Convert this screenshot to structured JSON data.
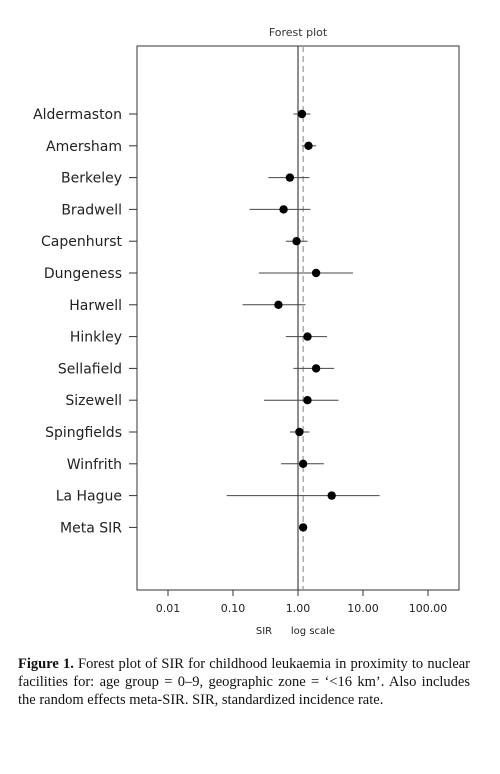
{
  "chart_data": {
    "type": "forest",
    "title": "Forest plot",
    "xlabel": "SIR",
    "xscale_label": "log scale",
    "xscale": "log",
    "xlim": [
      0.004,
      0.22
    ],
    "xticks": [
      0.01,
      0.1,
      1,
      10,
      100
    ],
    "xtick_labels": [
      "0.01",
      "0.10",
      "1.00",
      "10.00",
      "100.00"
    ],
    "reference_line": 1.0,
    "meta_line": 1.2,
    "rows": [
      {
        "label": "Aldermaston",
        "sir": 1.15,
        "lo": 0.85,
        "hi": 1.55
      },
      {
        "label": "Amersham",
        "sir": 1.45,
        "lo": 1.15,
        "hi": 1.9
      },
      {
        "label": "Berkeley",
        "sir": 0.75,
        "lo": 0.35,
        "hi": 1.5
      },
      {
        "label": "Bradwell",
        "sir": 0.6,
        "lo": 0.18,
        "hi": 1.55
      },
      {
        "label": "Capenhurst",
        "sir": 0.95,
        "lo": 0.65,
        "hi": 1.4
      },
      {
        "label": "Dungeness",
        "sir": 1.9,
        "lo": 0.25,
        "hi": 7.0
      },
      {
        "label": "Harwell",
        "sir": 0.5,
        "lo": 0.14,
        "hi": 1.3
      },
      {
        "label": "Hinkley",
        "sir": 1.4,
        "lo": 0.65,
        "hi": 2.8
      },
      {
        "label": "Sellafield",
        "sir": 1.9,
        "lo": 0.85,
        "hi": 3.6
      },
      {
        "label": "Sizewell",
        "sir": 1.4,
        "lo": 0.3,
        "hi": 4.2
      },
      {
        "label": "Spingfields",
        "sir": 1.05,
        "lo": 0.75,
        "hi": 1.5
      },
      {
        "label": "Winfrith",
        "sir": 1.2,
        "lo": 0.55,
        "hi": 2.5
      },
      {
        "label": "La Hague",
        "sir": 3.3,
        "lo": 0.08,
        "hi": 18.0
      },
      {
        "label": "Meta SIR",
        "sir": 1.2,
        "lo": 1.2,
        "hi": 1.2
      }
    ]
  },
  "caption": {
    "fig_label": "Figure 1.",
    "text": "Forest plot of SIR for childhood leukaemia in proximity to nuclear facilities for: age group = 0–9, geographic zone = ‘<16 km’. Also includes the random effects meta-SIR. SIR, standardized incidence rate."
  }
}
